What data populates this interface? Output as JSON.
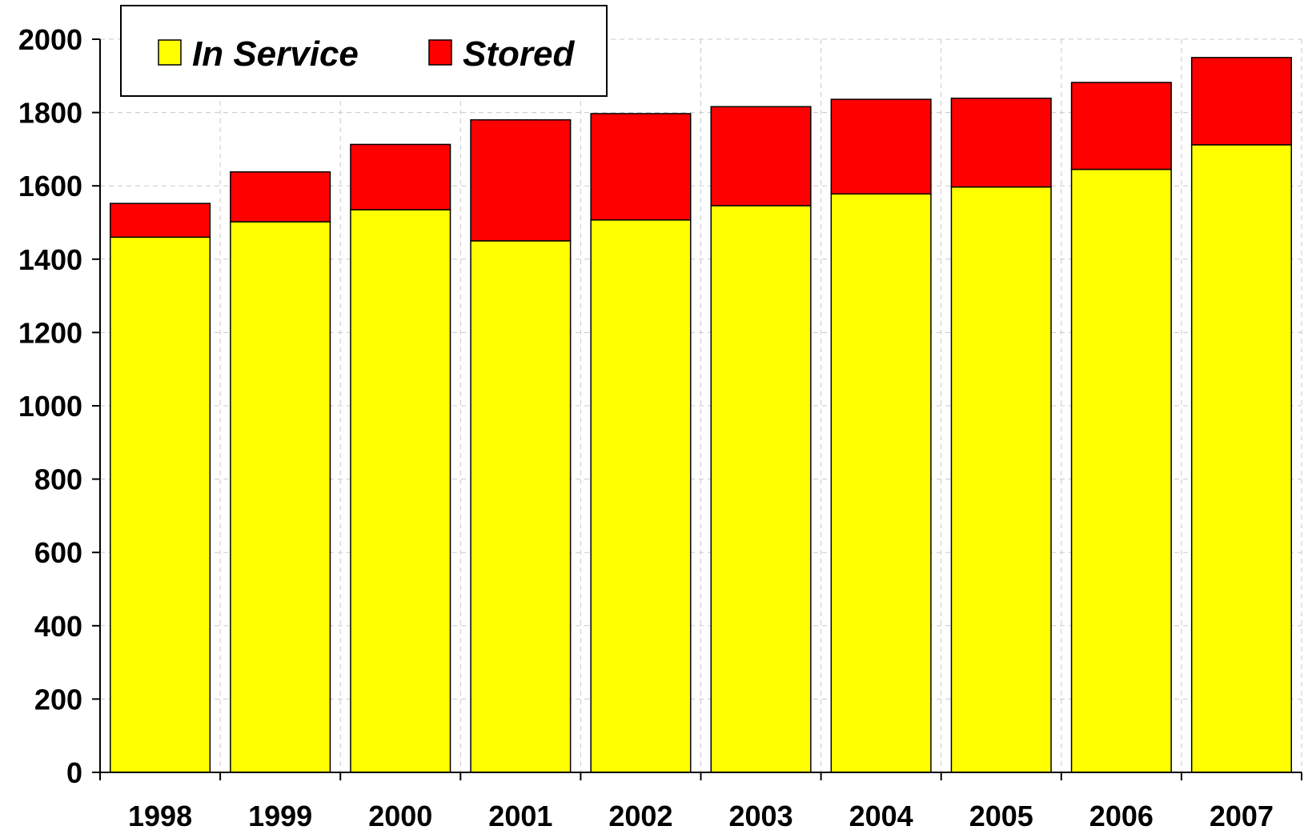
{
  "chart_data": {
    "type": "bar",
    "stacked": true,
    "categories": [
      "1998",
      "1999",
      "2000",
      "2001",
      "2002",
      "2003",
      "2004",
      "2005",
      "2006",
      "2007"
    ],
    "series": [
      {
        "name": "In Service",
        "color": "#ffff00",
        "values": [
          1460,
          1502,
          1535,
          1450,
          1507,
          1546,
          1578,
          1597,
          1645,
          1712
        ]
      },
      {
        "name": "Stored",
        "color": "#ff0000",
        "values": [
          92,
          136,
          178,
          330,
          290,
          270,
          258,
          242,
          237,
          238
        ]
      }
    ],
    "ylim": [
      0,
      2000
    ],
    "yticks": [
      0,
      200,
      400,
      600,
      800,
      1000,
      1200,
      1400,
      1600,
      1800,
      2000
    ],
    "grid": true,
    "legend_position": "top-left"
  }
}
